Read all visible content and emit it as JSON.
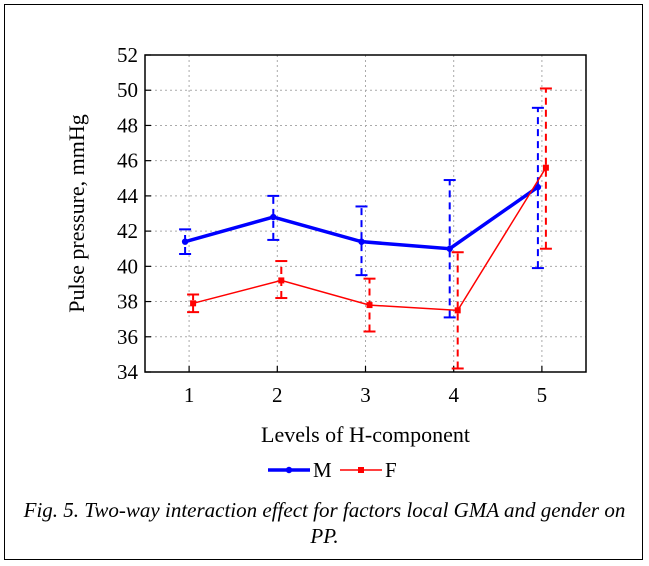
{
  "caption": "Fig. 5. Two-way interaction effect for factors local GMA and gender on PP.",
  "chart_data": {
    "type": "line",
    "ylabel": "Pulse pressure, mmHg",
    "xlabel": "Levels of H-component",
    "categories": [
      "1",
      "2",
      "3",
      "4",
      "5"
    ],
    "ylim": [
      34,
      52
    ],
    "yticks": [
      "34",
      "36",
      "38",
      "40",
      "42",
      "44",
      "46",
      "48",
      "50",
      "52"
    ],
    "grid": true,
    "legend_position": "bottom-center",
    "series": [
      {
        "name": "M",
        "color": "#0000ff",
        "values": [
          41.4,
          42.8,
          41.4,
          41.0,
          44.5
        ],
        "err_low": [
          40.7,
          41.5,
          39.5,
          37.1,
          39.9
        ],
        "err_high": [
          42.1,
          44.0,
          43.4,
          44.9,
          49.0
        ]
      },
      {
        "name": "F",
        "color": "#ff0000",
        "values": [
          37.9,
          39.2,
          37.8,
          37.5,
          45.6
        ],
        "err_low": [
          37.4,
          38.2,
          36.3,
          34.2,
          41.0
        ],
        "err_high": [
          38.4,
          40.3,
          39.3,
          40.8,
          50.1
        ]
      }
    ]
  }
}
